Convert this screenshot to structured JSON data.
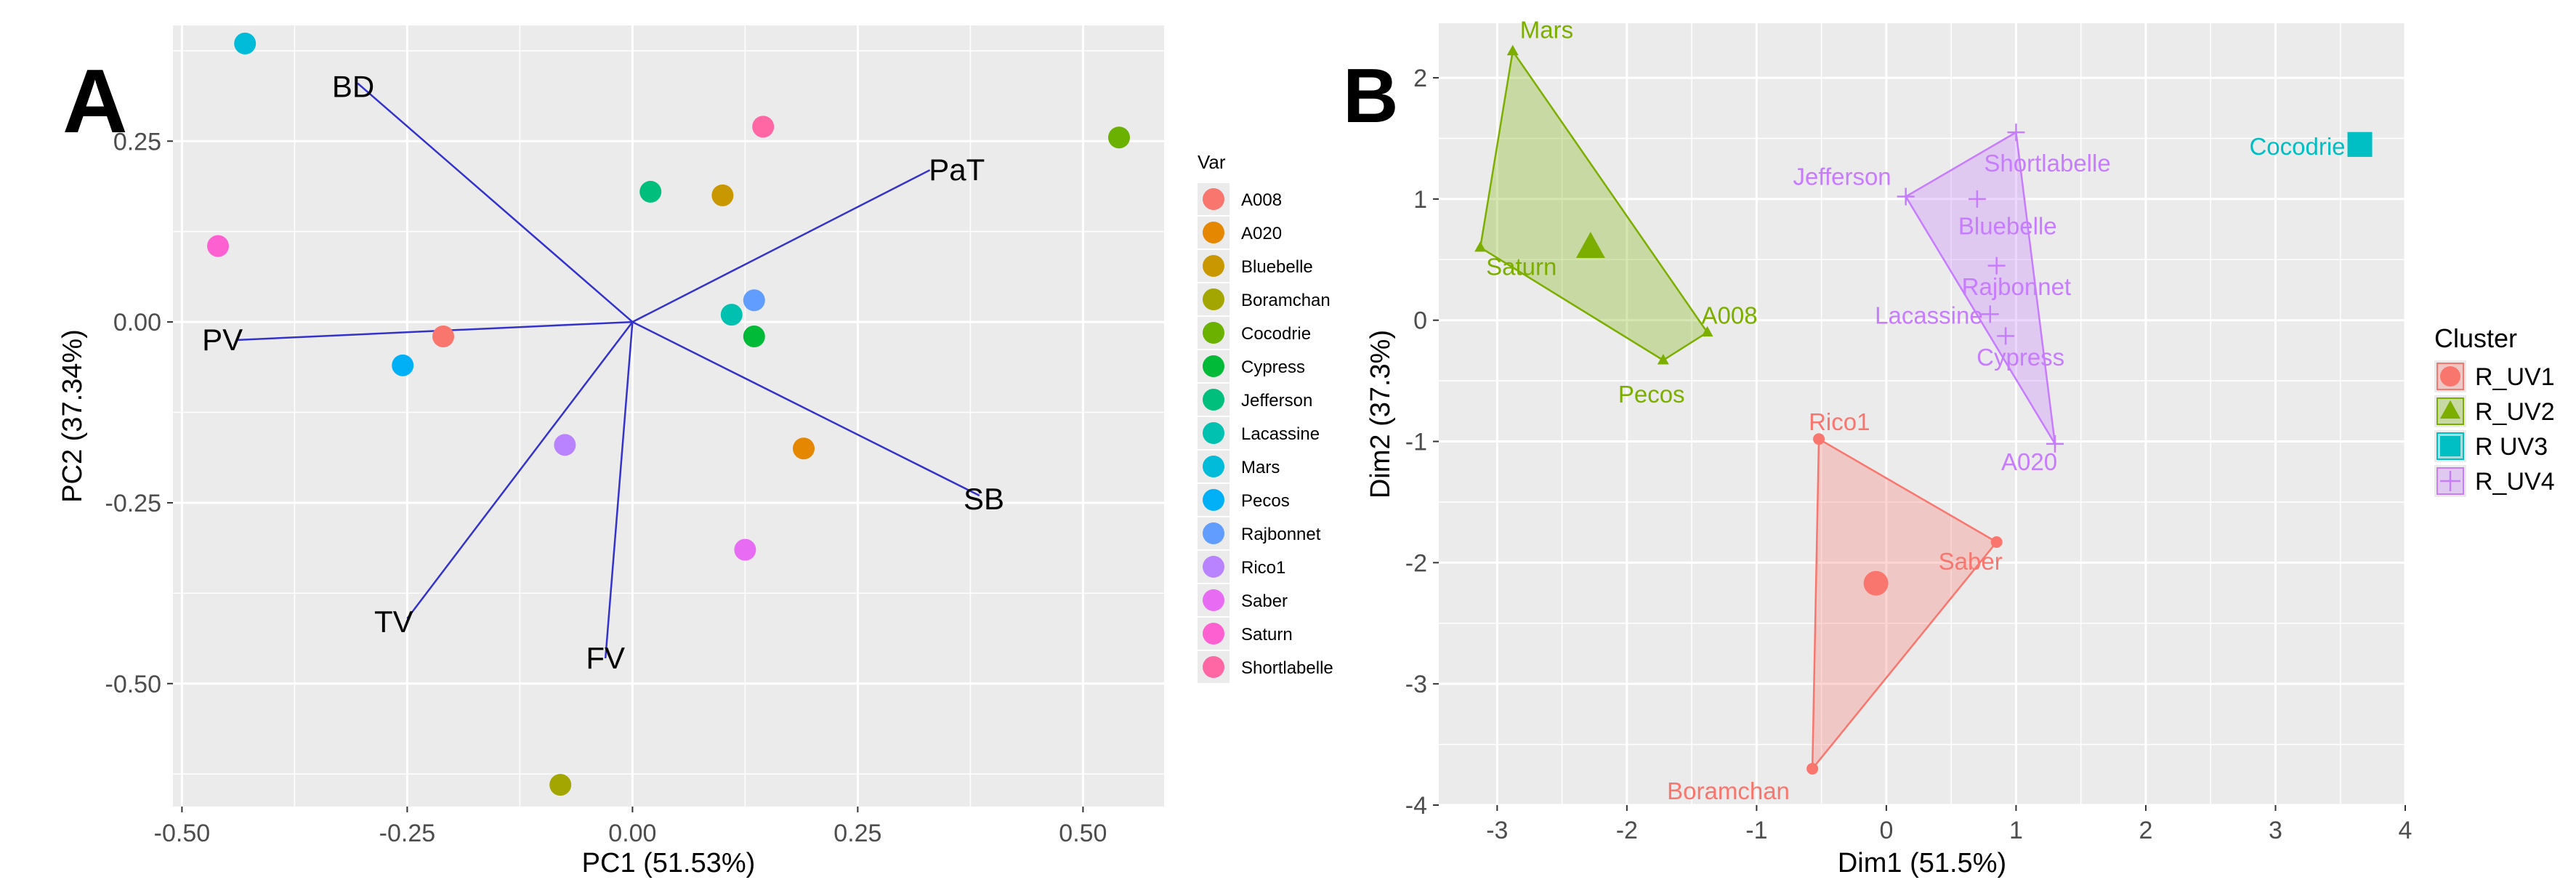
{
  "chart_data": [
    {
      "type": "scatter",
      "panel_label": "A",
      "xlabel": "PC1 (51.53%)",
      "ylabel": "PC2 (37.34%)",
      "xlim": [
        -0.51,
        0.59
      ],
      "ylim": [
        -0.67,
        0.41
      ],
      "xticks": [
        -0.5,
        -0.25,
        0.0,
        0.25,
        0.5
      ],
      "xtick_labels": [
        "-0.50",
        "-0.25",
        "0.00",
        "0.25",
        "0.50"
      ],
      "yticks": [
        0.25,
        0.0,
        -0.25,
        -0.5
      ],
      "ytick_labels": [
        "0.25",
        "0.00",
        "-0.25",
        "-0.50"
      ],
      "grid": true,
      "legend": {
        "title": "Var",
        "placement": "right",
        "entries": [
          {
            "name": "A008",
            "color": "#F8766D"
          },
          {
            "name": "A020",
            "color": "#E58700"
          },
          {
            "name": "Bluebelle",
            "color": "#C99800"
          },
          {
            "name": "Boramchan",
            "color": "#A3A500"
          },
          {
            "name": "Cocodrie",
            "color": "#6BB100"
          },
          {
            "name": "Cypress",
            "color": "#00BA38"
          },
          {
            "name": "Jefferson",
            "color": "#00BF7D"
          },
          {
            "name": "Lacassine",
            "color": "#00C0AF"
          },
          {
            "name": "Mars",
            "color": "#00BCD8"
          },
          {
            "name": "Pecos",
            "color": "#00B0F6"
          },
          {
            "name": "Rajbonnet",
            "color": "#619CFF"
          },
          {
            "name": "Rico1",
            "color": "#B983FF"
          },
          {
            "name": "Saber",
            "color": "#E76BF3"
          },
          {
            "name": "Saturn",
            "color": "#FD61D1"
          },
          {
            "name": "Shortlabelle",
            "color": "#FF67A4"
          }
        ]
      },
      "points": [
        {
          "name": "A008",
          "x": -0.21,
          "y": -0.02
        },
        {
          "name": "A020",
          "x": 0.19,
          "y": -0.175
        },
        {
          "name": "Bluebelle",
          "x": 0.1,
          "y": 0.175
        },
        {
          "name": "Boramchan",
          "x": -0.08,
          "y": -0.64
        },
        {
          "name": "Cocodrie",
          "x": 0.54,
          "y": 0.255
        },
        {
          "name": "Cypress",
          "x": 0.135,
          "y": -0.02
        },
        {
          "name": "Jefferson",
          "x": 0.02,
          "y": 0.18
        },
        {
          "name": "Lacassine",
          "x": 0.11,
          "y": 0.01
        },
        {
          "name": "Mars",
          "x": -0.43,
          "y": 0.385
        },
        {
          "name": "Pecos",
          "x": -0.255,
          "y": -0.06
        },
        {
          "name": "Rajbonnet",
          "x": 0.135,
          "y": 0.03
        },
        {
          "name": "Rico1",
          "x": -0.075,
          "y": -0.17
        },
        {
          "name": "Saber",
          "x": 0.125,
          "y": -0.315
        },
        {
          "name": "Saturn",
          "x": -0.46,
          "y": 0.105
        },
        {
          "name": "Shortlabelle",
          "x": 0.145,
          "y": 0.27
        }
      ],
      "vectors": [
        {
          "name": "BD",
          "x": -0.305,
          "y": 0.33,
          "label_x": -0.31,
          "label_y": 0.325
        },
        {
          "name": "PaT",
          "x": 0.33,
          "y": 0.21,
          "label_x": 0.36,
          "label_y": 0.21
        },
        {
          "name": "PV",
          "x": -0.44,
          "y": -0.025,
          "label_x": -0.455,
          "label_y": -0.025
        },
        {
          "name": "SB",
          "x": 0.385,
          "y": -0.24,
          "label_x": 0.39,
          "label_y": -0.245
        },
        {
          "name": "TV",
          "x": -0.25,
          "y": -0.41,
          "label_x": -0.265,
          "label_y": -0.415
        },
        {
          "name": "FV",
          "x": -0.03,
          "y": -0.465,
          "label_x": -0.03,
          "label_y": -0.465
        }
      ],
      "vector_color": "#3333CC"
    },
    {
      "type": "scatter",
      "panel_label": "B",
      "xlabel": "Dim1 (51.5%)",
      "ylabel": "Dim2 (37.3%)",
      "xlim": [
        -3.45,
        4.0
      ],
      "ylim": [
        -4.0,
        2.45
      ],
      "xticks": [
        -3,
        -2,
        -1,
        0,
        1,
        2,
        3,
        4
      ],
      "xtick_labels": [
        "-3",
        "-2",
        "-1",
        "0",
        "1",
        "2",
        "3",
        "4"
      ],
      "yticks": [
        2,
        1,
        0,
        -1,
        -2,
        -3,
        -4
      ],
      "ytick_labels": [
        "2",
        "1",
        "0",
        "-1",
        "-2",
        "-3",
        "-4"
      ],
      "grid": true,
      "legend": {
        "title": "Cluster",
        "placement": "right",
        "entries": [
          {
            "name": "R_UV1",
            "color": "#F8766D",
            "shape": "circle"
          },
          {
            "name": "R_UV2",
            "color": "#7CAE00",
            "shape": "triangle"
          },
          {
            "name": "R UV3",
            "color": "#00BFC4",
            "shape": "square"
          },
          {
            "name": "R_UV4",
            "color": "#C77CFF",
            "shape": "plus"
          }
        ]
      },
      "points": [
        {
          "name": "Mars",
          "x": -2.88,
          "y": 2.22,
          "cluster": "R_UV2"
        },
        {
          "name": "Saturn",
          "x": -3.13,
          "y": 0.6,
          "cluster": "R_UV2"
        },
        {
          "name": "A008",
          "x": -1.38,
          "y": -0.1,
          "cluster": "R_UV2"
        },
        {
          "name": "Pecos",
          "x": -1.72,
          "y": -0.33,
          "cluster": "R_UV2"
        },
        {
          "name": "Cocodrie",
          "x": 3.65,
          "y": 1.45,
          "cluster": "R UV3"
        },
        {
          "name": "Shortlabelle",
          "x": 1.0,
          "y": 1.55,
          "cluster": "R_UV4"
        },
        {
          "name": "Jefferson",
          "x": 0.15,
          "y": 1.02,
          "cluster": "R_UV4"
        },
        {
          "name": "Bluebelle",
          "x": 0.7,
          "y": 1.0,
          "cluster": "R_UV4"
        },
        {
          "name": "Rajbonnet",
          "x": 0.85,
          "y": 0.45,
          "cluster": "R_UV4"
        },
        {
          "name": "Lacassine",
          "x": 0.8,
          "y": 0.05,
          "cluster": "R_UV4"
        },
        {
          "name": "Cypress",
          "x": 0.92,
          "y": -0.13,
          "cluster": "R_UV4"
        },
        {
          "name": "A020",
          "x": 1.3,
          "y": -1.02,
          "cluster": "R_UV4"
        },
        {
          "name": "Rico1",
          "x": -0.52,
          "y": -0.98,
          "cluster": "R_UV1"
        },
        {
          "name": "Saber",
          "x": 0.85,
          "y": -1.83,
          "cluster": "R_UV1"
        },
        {
          "name": "Boramchan",
          "x": -0.57,
          "y": -3.7,
          "cluster": "R_UV1"
        }
      ],
      "hulls": [
        {
          "cluster": "R_UV2",
          "vertices": [
            [
              -2.88,
              2.22
            ],
            [
              -3.13,
              0.6
            ],
            [
              -1.72,
              -0.33
            ],
            [
              -1.38,
              -0.1
            ]
          ]
        },
        {
          "cluster": "R_UV4",
          "vertices": [
            [
              1.0,
              1.55
            ],
            [
              0.15,
              1.02
            ],
            [
              1.3,
              -1.02
            ]
          ]
        },
        {
          "cluster": "R_UV1",
          "vertices": [
            [
              -0.52,
              -0.98
            ],
            [
              0.85,
              -1.83
            ],
            [
              -0.57,
              -3.7
            ]
          ]
        }
      ],
      "centroids": [
        {
          "cluster": "R_UV1",
          "x": -0.08,
          "y": -2.17
        },
        {
          "cluster": "R_UV2",
          "x": -2.28,
          "y": 0.6
        },
        {
          "cluster": "R UV3",
          "x": 3.65,
          "y": 1.45
        }
      ]
    }
  ]
}
